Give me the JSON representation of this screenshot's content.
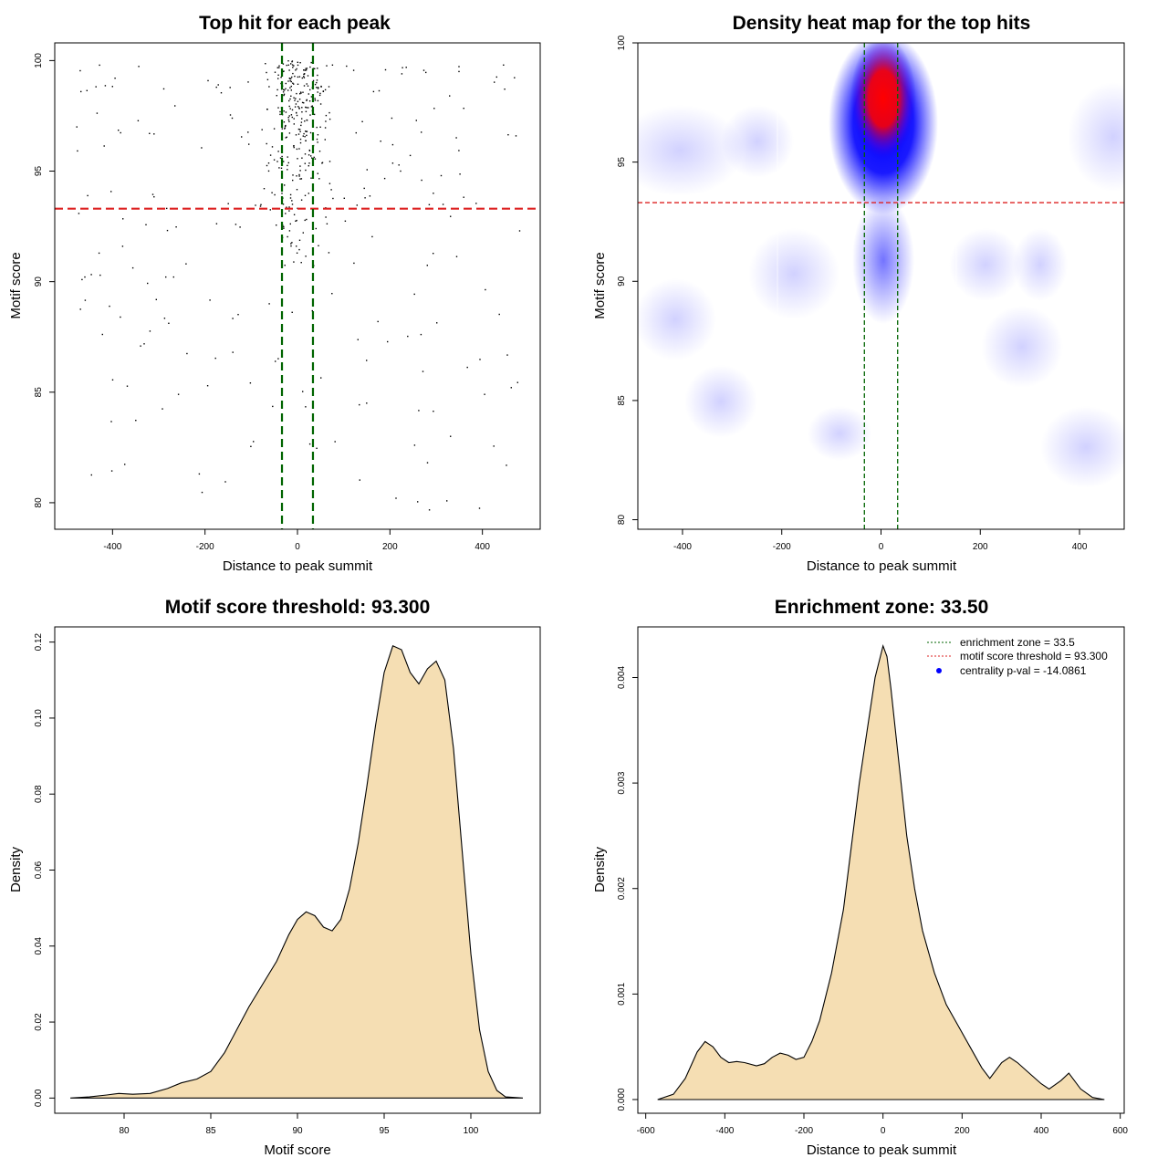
{
  "chart_data": [
    {
      "type": "scatter",
      "title": "Top hit for each peak",
      "xlabel": "Distance to peak summit",
      "ylabel": "Motif score",
      "xlim": [
        -525,
        525
      ],
      "ylim": [
        78.8,
        100.8
      ],
      "xticks": [
        -400,
        -200,
        0,
        200,
        400
      ],
      "yticks": [
        80,
        85,
        90,
        95,
        100
      ],
      "grid": false,
      "point_color": "#000000",
      "hline": {
        "y": 93.3,
        "color": "#dd2222",
        "style": "dashed"
      },
      "vlines": [
        {
          "x": -33.5,
          "color": "#006400",
          "style": "dashed"
        },
        {
          "x": 33.5,
          "color": "#006400",
          "style": "dashed"
        }
      ],
      "points_generator": {
        "n": 520,
        "central_fraction": 0.55,
        "central_x_sd": 38,
        "central_y_range": [
          90,
          100
        ],
        "outer_x_range": [
          -485,
          485
        ],
        "outer_y_range": [
          79.6,
          99.8
        ]
      }
    },
    {
      "type": "heatmap",
      "title": "Density heat map for the top hits",
      "xlabel": "Distance to peak summit",
      "ylabel": "Motif score",
      "xlim": [
        -490,
        490
      ],
      "ylim": [
        79.6,
        100
      ],
      "xticks": [
        -400,
        -200,
        0,
        200,
        400
      ],
      "yticks": [
        80,
        85,
        90,
        95,
        100
      ],
      "colors": [
        "#ffffff",
        "#0000ff",
        "#ff0000"
      ],
      "hotspot": {
        "x": 0,
        "y": 97.5
      },
      "hline": {
        "y": 93.3,
        "color": "#dd2222",
        "style": "dashed"
      },
      "vlines": [
        {
          "x": -33.5,
          "color": "#006400",
          "style": "dashed"
        },
        {
          "x": 33.5,
          "color": "#006400",
          "style": "dashed"
        }
      ]
    },
    {
      "type": "area",
      "title": "Motif score threshold: 93.300",
      "xlabel": "Motif score",
      "ylabel": "Density",
      "xlim": [
        76,
        104
      ],
      "ylim": [
        -0.004,
        0.124
      ],
      "xticks": [
        80,
        85,
        90,
        95,
        100
      ],
      "yticks": [
        0,
        0.02,
        0.04,
        0.06,
        0.08,
        0.1,
        0.12
      ],
      "ytick_labels": [
        "0.00",
        "0.02",
        "0.04",
        "0.06",
        "0.08",
        "0.10",
        "0.12"
      ],
      "fill": "#f5deb3",
      "x": [
        76.9,
        78,
        79,
        79.7,
        80.5,
        81.5,
        82.5,
        83.3,
        84.2,
        85,
        85.8,
        86.5,
        87.2,
        88,
        88.8,
        89.5,
        90,
        90.5,
        91,
        91.5,
        92,
        92.5,
        93,
        93.5,
        94,
        94.5,
        95,
        95.5,
        96,
        96.5,
        97,
        97.5,
        98,
        98.5,
        99,
        99.5,
        100,
        100.5,
        101,
        101.5,
        102,
        103
      ],
      "y": [
        0,
        0.0003,
        0.0008,
        0.0012,
        0.001,
        0.0012,
        0.0025,
        0.004,
        0.005,
        0.007,
        0.012,
        0.018,
        0.024,
        0.03,
        0.036,
        0.043,
        0.047,
        0.049,
        0.048,
        0.045,
        0.044,
        0.047,
        0.055,
        0.067,
        0.082,
        0.098,
        0.112,
        0.119,
        0.118,
        0.112,
        0.109,
        0.113,
        0.115,
        0.11,
        0.092,
        0.065,
        0.038,
        0.018,
        0.007,
        0.002,
        0.0003,
        0
      ]
    },
    {
      "type": "area",
      "title": "Enrichment zone: 33.50",
      "xlabel": "Distance to peak summit",
      "ylabel": "Density",
      "xlim": [
        -620,
        610
      ],
      "ylim": [
        -0.00013,
        0.00448
      ],
      "xticks": [
        -600,
        -400,
        -200,
        0,
        200,
        400,
        600
      ],
      "yticks": [
        0,
        0.001,
        0.002,
        0.003,
        0.004
      ],
      "ytick_labels": [
        "0.000",
        "0.001",
        "0.002",
        "0.003",
        "0.004"
      ],
      "fill": "#f5deb3",
      "x": [
        -570,
        -530,
        -500,
        -470,
        -450,
        -430,
        -410,
        -390,
        -370,
        -350,
        -320,
        -300,
        -280,
        -260,
        -240,
        -220,
        -200,
        -180,
        -160,
        -130,
        -100,
        -80,
        -60,
        -40,
        -20,
        0,
        10,
        20,
        40,
        60,
        80,
        100,
        130,
        160,
        190,
        220,
        250,
        270,
        300,
        320,
        340,
        370,
        400,
        420,
        450,
        470,
        500,
        530,
        560
      ],
      "y": [
        0,
        5e-05,
        0.0002,
        0.00045,
        0.00055,
        0.0005,
        0.0004,
        0.00035,
        0.00036,
        0.00035,
        0.00032,
        0.00034,
        0.0004,
        0.00044,
        0.00042,
        0.00038,
        0.0004,
        0.00055,
        0.00075,
        0.0012,
        0.0018,
        0.0024,
        0.003,
        0.0035,
        0.004,
        0.0043,
        0.0042,
        0.0039,
        0.0032,
        0.0025,
        0.002,
        0.0016,
        0.0012,
        0.0009,
        0.0007,
        0.0005,
        0.0003,
        0.0002,
        0.00035,
        0.0004,
        0.00035,
        0.00025,
        0.00015,
        0.0001,
        0.00018,
        0.00025,
        0.0001,
        2e-05,
        0
      ]
    }
  ],
  "panels": [
    {
      "title": "Top hit for each peak",
      "xlabel": "Distance to peak summit",
      "ylabel": "Motif score"
    },
    {
      "title": "Density heat map for the top hits",
      "xlabel": "Distance to peak summit",
      "ylabel": "Motif score"
    },
    {
      "title": "Motif score threshold: 93.300",
      "xlabel": "Motif score",
      "ylabel": "Density"
    },
    {
      "title": "Enrichment zone: 33.50",
      "xlabel": "Distance to peak summit",
      "ylabel": "Density"
    }
  ],
  "legend": {
    "placement": "top-right",
    "items": [
      {
        "label": "enrichment zone = 33.5",
        "color": "#006400",
        "kind": "dotted-line"
      },
      {
        "label": "motif score threshold = 93.300",
        "color": "#dd2222",
        "kind": "dotted-line"
      },
      {
        "label": "centrality p-val = -14.0861",
        "color": "#0000ff",
        "kind": "point"
      }
    ]
  }
}
